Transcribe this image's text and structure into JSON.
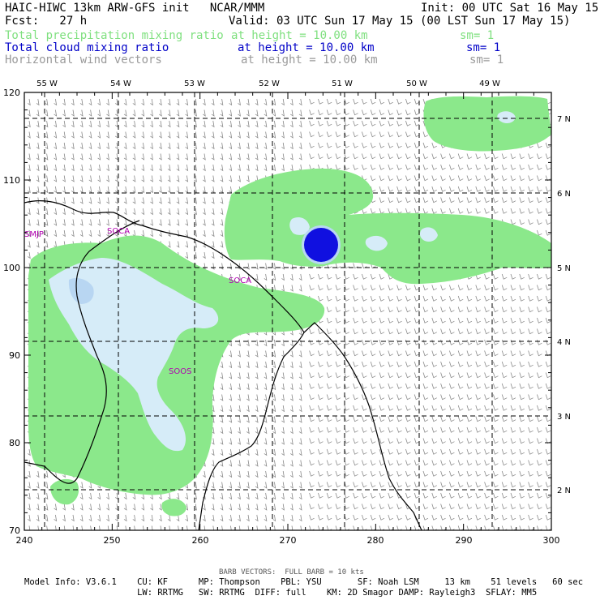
{
  "header": {
    "title_left": "HAIC-HIWC 13km ARW-GFS init   NCAR/MMM",
    "init_right": "Init: 00 UTC Sat 16 May 15",
    "fcst": "Fcst:   27 h",
    "valid": "Valid: 03 UTC Sun 17 May 15 (00 LST Sun 17 May 15)",
    "field1": {
      "name": "Total precipitation mixing ratio",
      "height": "at height = 10.00 km",
      "sm": "sm= 1",
      "color": "#7fe07f"
    },
    "field2": {
      "name": "Total cloud mixing ratio",
      "height": "at height = 10.00 km",
      "sm": "sm= 1",
      "color": "#0000c8"
    },
    "field3": {
      "name": "Horizontal wind vectors",
      "height": "at height = 10.00 km",
      "sm": "sm= 1",
      "color": "#9a9a9a"
    }
  },
  "axes": {
    "x_ticks": [
      "240",
      "250",
      "260",
      "270",
      "280",
      "290",
      "300"
    ],
    "y_ticks": [
      "70",
      "80",
      "90",
      "100",
      "110",
      "120"
    ],
    "lon_labels": [
      "55 W",
      "54 W",
      "53 W",
      "52 W",
      "51 W",
      "50 W",
      "49 W"
    ],
    "lat_labels": [
      "7 N",
      "6 N",
      "5 N",
      "4 N",
      "3 N",
      "2 N"
    ]
  },
  "stations": [
    "SMJP",
    "SOCA",
    "SOCA",
    "SOOS"
  ],
  "footer": {
    "barb": "BARB VECTORS:  FULL BARB = 10 kts",
    "model1": "Model Info: V3.6.1    CU: KF      MP: Thompson    PBL: YSU       SF: Noah LSM     13 km    51 levels   60 sec",
    "model2": "                      LW: RRTMG   SW: RRTMG  DIFF: full    KM: 2D Smagor DAMP: Rayleigh3  SFLAY: MM5"
  },
  "colors": {
    "precip": "#8be88b",
    "cloud_light": "#d6ecf8",
    "cloud_mid": "#b8d6f2",
    "cloud_core": "#1010e0"
  }
}
